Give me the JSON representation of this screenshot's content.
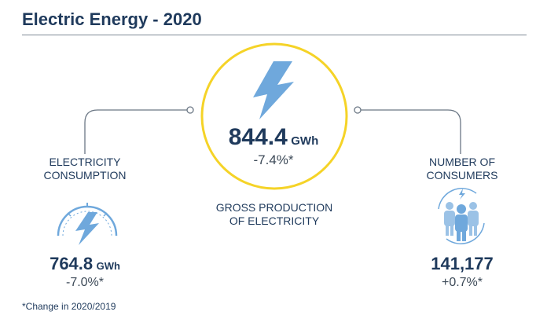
{
  "title": "Electric Energy - 2020",
  "production": {
    "value": "844.4",
    "unit": "GWh",
    "change": "-7.4%*",
    "label_line1": "GROSS PRODUCTION",
    "label_line2": "OF ELECTRICITY",
    "icon": "lightning-bolt-icon"
  },
  "consumption": {
    "label_line1": "ELECTRICITY",
    "label_line2": "CONSUMPTION",
    "value": "764.8",
    "unit": "GWh",
    "change": "-7.0%*",
    "icon": "gauge-lightning-icon"
  },
  "consumers": {
    "label_line1": "NUMBER OF",
    "label_line2": "CONSUMERS",
    "value": "141,177",
    "change": "+0.7%*",
    "icon": "people-group-icon"
  },
  "footnote": "*Change in 2020/2019",
  "colors": {
    "navy": "#1f3a5c",
    "circle": "#f5d327",
    "bolt": "#6fa8dc",
    "connector": "#6b7785"
  }
}
